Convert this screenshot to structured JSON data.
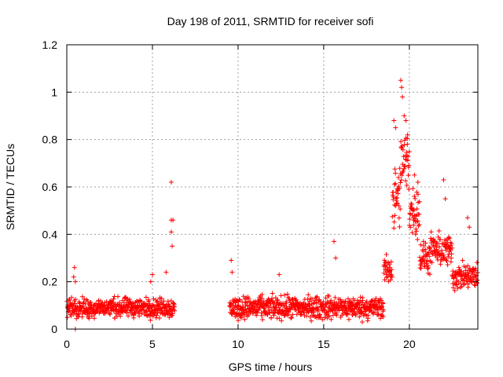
{
  "chart_data": {
    "type": "scatter",
    "title": "Day 198 of 2011, SRMTID for receiver sofi",
    "xlabel": "GPS time / hours",
    "ylabel": "SRMTID / TECUs",
    "xlim": [
      0,
      24
    ],
    "ylim": [
      0,
      1.2
    ],
    "xticks": [
      0,
      5,
      10,
      15,
      20
    ],
    "yticks": [
      0,
      0.2,
      0.4,
      0.6,
      0.8,
      1,
      1.2
    ],
    "ytick_labels": [
      "0",
      "0.2",
      "0.4",
      "0.6",
      "0.8",
      "1",
      "1.2"
    ],
    "marker": "+",
    "grid": true,
    "series": [
      {
        "name": "SRMTID",
        "color": "#ff0000",
        "segments": [
          {
            "x_start": 0.0,
            "x_end": 6.3,
            "typical": 0.09,
            "spread": 0.06
          },
          {
            "x_start": 9.5,
            "x_end": 18.5,
            "typical": 0.09,
            "spread": 0.07
          },
          {
            "x_start": 18.5,
            "x_end": 19.0,
            "typical": 0.25,
            "spread": 0.08
          },
          {
            "x_start": 19.0,
            "x_end": 19.5,
            "typical": 0.55,
            "spread": 0.2
          },
          {
            "x_start": 19.5,
            "x_end": 20.0,
            "typical": 0.7,
            "spread": 0.2
          },
          {
            "x_start": 20.0,
            "x_end": 20.6,
            "typical": 0.5,
            "spread": 0.15
          },
          {
            "x_start": 20.6,
            "x_end": 21.2,
            "typical": 0.3,
            "spread": 0.1
          },
          {
            "x_start": 21.2,
            "x_end": 22.5,
            "typical": 0.33,
            "spread": 0.1
          },
          {
            "x_start": 22.5,
            "x_end": 24.0,
            "typical": 0.22,
            "spread": 0.08
          }
        ],
        "highlights": [
          {
            "x": 0.4,
            "y": 0.22
          },
          {
            "x": 0.45,
            "y": 0.26
          },
          {
            "x": 0.5,
            "y": 0.2
          },
          {
            "x": 0.5,
            "y": 0.0
          },
          {
            "x": 4.9,
            "y": 0.2
          },
          {
            "x": 5.0,
            "y": 0.23
          },
          {
            "x": 5.8,
            "y": 0.24
          },
          {
            "x": 6.1,
            "y": 0.62
          },
          {
            "x": 6.1,
            "y": 0.46
          },
          {
            "x": 6.1,
            "y": 0.41
          },
          {
            "x": 6.15,
            "y": 0.35
          },
          {
            "x": 6.2,
            "y": 0.46
          },
          {
            "x": 9.6,
            "y": 0.29
          },
          {
            "x": 9.65,
            "y": 0.24
          },
          {
            "x": 12.4,
            "y": 0.23
          },
          {
            "x": 15.6,
            "y": 0.37
          },
          {
            "x": 15.7,
            "y": 0.3
          },
          {
            "x": 19.1,
            "y": 0.88
          },
          {
            "x": 19.2,
            "y": 0.85
          },
          {
            "x": 19.5,
            "y": 1.05
          },
          {
            "x": 19.55,
            "y": 1.02
          },
          {
            "x": 19.6,
            "y": 0.98
          },
          {
            "x": 19.7,
            "y": 0.9
          },
          {
            "x": 19.8,
            "y": 0.88
          },
          {
            "x": 19.9,
            "y": 0.82
          },
          {
            "x": 20.3,
            "y": 0.65
          },
          {
            "x": 20.5,
            "y": 0.62
          },
          {
            "x": 22.0,
            "y": 0.63
          },
          {
            "x": 22.1,
            "y": 0.55
          },
          {
            "x": 23.4,
            "y": 0.47
          },
          {
            "x": 23.5,
            "y": 0.43
          }
        ]
      }
    ]
  }
}
